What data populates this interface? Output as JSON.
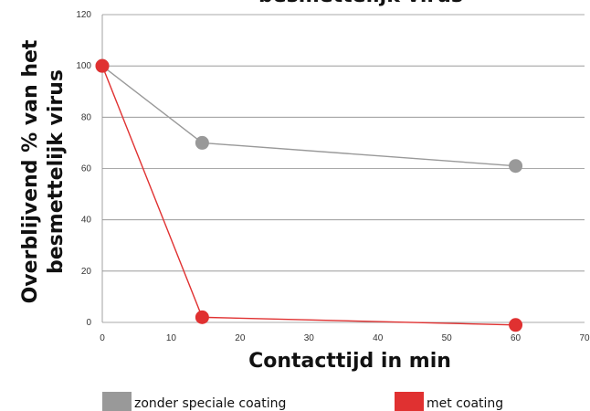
{
  "chart_data": {
    "type": "line",
    "title": "besmettelijk virus",
    "xlabel": "Contacttijd in min",
    "ylabel_lines": [
      "Overblijvend % van het",
      "besmettelijk virus"
    ],
    "xlim": [
      0,
      70
    ],
    "ylim": [
      0,
      120
    ],
    "x_ticks": [
      0,
      10,
      20,
      30,
      40,
      50,
      60,
      70
    ],
    "y_ticks": [
      0,
      20,
      40,
      60,
      80,
      100,
      120
    ],
    "grid": "horizontal",
    "legend_position": "bottom",
    "series": [
      {
        "name": "zonder speciale coating",
        "color": "#999999",
        "points": [
          {
            "x": 0,
            "y": 100
          },
          {
            "x": 14.5,
            "y": 70
          },
          {
            "x": 60,
            "y": 61
          }
        ]
      },
      {
        "name": "met coating",
        "color": "#e03131",
        "points": [
          {
            "x": 0,
            "y": 100
          },
          {
            "x": 14.5,
            "y": 2
          },
          {
            "x": 60,
            "y": -1
          }
        ]
      }
    ]
  }
}
